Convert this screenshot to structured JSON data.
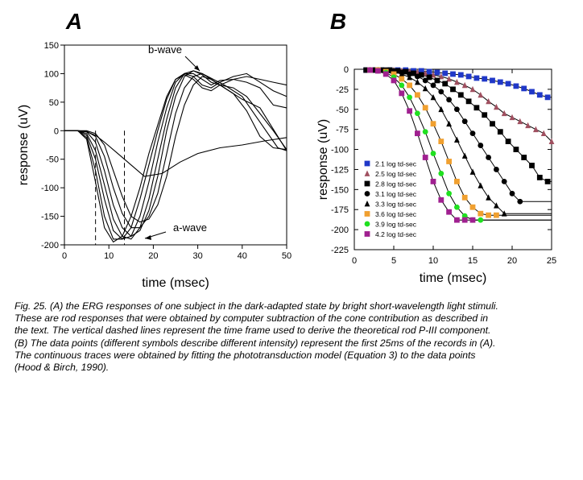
{
  "chart_data": [
    {
      "panel_label": "A",
      "type": "line",
      "xlabel": "time (msec)",
      "ylabel": "response (uV)",
      "xlim": [
        0,
        50
      ],
      "ylim": [
        -200,
        150
      ],
      "x_ticks": [
        0,
        10,
        20,
        30,
        40,
        50
      ],
      "y_ticks": [
        -200,
        -150,
        -100,
        -50,
        0,
        50,
        100,
        150
      ],
      "vlines_dashed": [
        7,
        13.5
      ],
      "annotations": [
        "b-wave",
        "a-wave"
      ],
      "series": [
        {
          "x": [
            0,
            3,
            5,
            7,
            9,
            12,
            15,
            18,
            22,
            26,
            30,
            35,
            40,
            45,
            50
          ],
          "y": [
            0,
            0,
            -2,
            -8,
            -20,
            -40,
            -60,
            -80,
            -75,
            -55,
            -40,
            -30,
            -25,
            -18,
            -12
          ]
        },
        {
          "x": [
            0,
            3,
            5,
            7,
            9,
            11,
            13,
            15,
            17,
            19,
            21,
            23,
            25,
            27,
            29,
            31,
            33,
            36,
            40,
            44,
            48,
            50
          ],
          "y": [
            0,
            0,
            0,
            -5,
            -25,
            -70,
            -115,
            -150,
            -160,
            -155,
            -130,
            -80,
            -10,
            45,
            80,
            95,
            90,
            75,
            55,
            40,
            -10,
            -35
          ]
        },
        {
          "x": [
            0,
            3,
            5,
            7,
            9,
            11,
            13,
            15,
            17,
            19,
            21,
            23,
            25,
            27,
            29,
            31,
            33,
            36,
            40,
            44,
            48,
            50
          ],
          "y": [
            0,
            0,
            -1,
            -10,
            -45,
            -100,
            -145,
            -170,
            -170,
            -150,
            -110,
            -40,
            30,
            75,
            95,
            100,
            92,
            80,
            60,
            15,
            -30,
            -35
          ]
        },
        {
          "x": [
            0,
            3,
            5,
            7,
            9,
            11,
            13,
            15,
            17,
            19,
            21,
            23,
            25,
            27,
            29,
            31,
            33,
            35,
            38,
            41,
            44,
            47,
            50
          ],
          "y": [
            0,
            0,
            -2,
            -20,
            -70,
            -130,
            -170,
            -185,
            -175,
            -140,
            -80,
            0,
            60,
            95,
            105,
            100,
            90,
            80,
            65,
            35,
            -10,
            -30,
            -33
          ]
        },
        {
          "x": [
            0,
            3,
            5,
            7,
            9,
            11,
            13,
            15,
            17,
            19,
            21,
            23,
            25,
            27,
            29,
            31,
            33,
            35,
            38,
            41,
            44,
            47,
            50
          ],
          "y": [
            0,
            0,
            -5,
            -35,
            -95,
            -155,
            -185,
            -190,
            -170,
            -120,
            -50,
            20,
            75,
            100,
            105,
            98,
            85,
            80,
            75,
            60,
            30,
            0,
            -33
          ]
        },
        {
          "x": [
            0,
            3,
            5,
            7,
            9,
            11,
            13,
            15,
            17,
            19,
            21,
            23,
            25,
            27,
            29,
            31,
            33,
            35,
            38,
            41,
            44,
            47,
            50
          ],
          "y": [
            0,
            0,
            -8,
            -50,
            -120,
            -175,
            -190,
            -185,
            -150,
            -90,
            -20,
            40,
            85,
            100,
            100,
            90,
            80,
            88,
            90,
            85,
            75,
            45,
            40
          ]
        },
        {
          "x": [
            0,
            3,
            5,
            7,
            9,
            11,
            13,
            15,
            17,
            19,
            21,
            23,
            25,
            27,
            29,
            31,
            33,
            35,
            38,
            41,
            44,
            47,
            50
          ],
          "y": [
            0,
            0,
            -12,
            -70,
            -150,
            -190,
            -190,
            -170,
            -120,
            -60,
            0,
            55,
            90,
            100,
            95,
            80,
            75,
            85,
            95,
            100,
            85,
            70,
            60
          ]
        },
        {
          "x": [
            0,
            3,
            5,
            7,
            9,
            11,
            13,
            15,
            17,
            19,
            21,
            23,
            25,
            27,
            29,
            31,
            33,
            35,
            38,
            41,
            44,
            47,
            50
          ],
          "y": [
            0,
            0,
            -15,
            -90,
            -170,
            -195,
            -185,
            -150,
            -100,
            -40,
            10,
            60,
            90,
            98,
            90,
            75,
            70,
            80,
            90,
            95,
            90,
            85,
            80
          ]
        }
      ]
    },
    {
      "panel_label": "B",
      "type": "scatter",
      "xlabel": "time (msec)",
      "ylabel": "response (uV)",
      "xlim": [
        0,
        25
      ],
      "ylim": [
        -225,
        0
      ],
      "x_ticks": [
        0,
        5,
        10,
        15,
        20,
        25
      ],
      "y_ticks": [
        -225,
        -200,
        -175,
        -150,
        -125,
        -100,
        -75,
        -50,
        -25,
        0
      ],
      "legend": "left",
      "series": [
        {
          "name": "2.1 log td-sec",
          "color": "#2038c8",
          "marker": "square",
          "x": [
            1.5,
            2.5,
            3.5,
            4.5,
            5.5,
            6.5,
            7.5,
            8.5,
            9.5,
            10.5,
            11.5,
            12.5,
            13.5,
            14.5,
            15.5,
            16.5,
            17.5,
            18.5,
            19.5,
            20.5,
            21.5,
            22.5,
            23.5,
            24.5
          ],
          "y": [
            -1,
            -1,
            -1,
            -1,
            -1,
            -1,
            -2,
            -2,
            -3,
            -4,
            -5,
            -6,
            -7,
            -9,
            -11,
            -12,
            -14,
            -16,
            -18,
            -21,
            -24,
            -28,
            -32,
            -35
          ]
        },
        {
          "name": "2.5 log td-sec",
          "color": "#a05060",
          "marker": "triangle",
          "x": [
            2,
            3,
            4,
            5,
            6,
            7,
            8,
            9,
            10,
            11,
            12,
            13,
            14,
            15,
            16,
            17,
            18,
            19,
            20,
            21,
            22,
            23,
            24,
            25
          ],
          "y": [
            -1,
            -1,
            -1,
            -1,
            -2,
            -3,
            -4,
            -5,
            -7,
            -9,
            -12,
            -16,
            -20,
            -25,
            -32,
            -40,
            -47,
            -55,
            -60,
            -65,
            -70,
            -75,
            -80,
            -90
          ]
        },
        {
          "name": "2.8 log td-sec",
          "color": "#000000",
          "marker": "square",
          "x": [
            1.5,
            2.5,
            3.5,
            4.5,
            5.5,
            6.5,
            7.5,
            8.5,
            9.5,
            10.5,
            11.5,
            12.5,
            13.5,
            14.5,
            15.5,
            16.5,
            17.5,
            18.5,
            19.5,
            20.5,
            21.5,
            22.5,
            23.5,
            24.5
          ],
          "y": [
            -1,
            -1,
            -1,
            -1,
            -2,
            -3,
            -5,
            -7,
            -10,
            -14,
            -18,
            -25,
            -32,
            -40,
            -48,
            -57,
            -68,
            -78,
            -90,
            -100,
            -110,
            -120,
            -135,
            -140
          ]
        },
        {
          "name": "3.1 log td-sec",
          "color": "#000000",
          "marker": "circle",
          "x": [
            2,
            3,
            4,
            5,
            6,
            7,
            8,
            9,
            10,
            11,
            12,
            13,
            14,
            15,
            16,
            17,
            18,
            19,
            20,
            21
          ],
          "y": [
            -1,
            -1,
            -1,
            -2,
            -4,
            -6,
            -9,
            -14,
            -20,
            -28,
            -38,
            -50,
            -65,
            -80,
            -95,
            -110,
            -125,
            -140,
            -155,
            -165
          ]
        },
        {
          "name": "3.3 log td-sec",
          "color": "#000000",
          "marker": "triangle",
          "x": [
            2,
            3,
            4,
            5,
            6,
            7,
            8,
            9,
            10,
            11,
            12,
            13,
            14,
            15,
            16,
            17,
            18,
            19
          ],
          "y": [
            -1,
            -1,
            -2,
            -3,
            -6,
            -10,
            -16,
            -24,
            -35,
            -50,
            -68,
            -88,
            -108,
            -128,
            -145,
            -160,
            -170,
            -180
          ]
        },
        {
          "name": "3.6 log td-sec",
          "color": "#f0a030",
          "marker": "square",
          "x": [
            2,
            3,
            4,
            5,
            6,
            7,
            8,
            9,
            10,
            11,
            12,
            13,
            14,
            15,
            16,
            17,
            18
          ],
          "y": [
            -1,
            -1,
            -3,
            -6,
            -12,
            -20,
            -32,
            -48,
            -68,
            -90,
            -115,
            -140,
            -160,
            -172,
            -180,
            -182,
            -182
          ]
        },
        {
          "name": "3.9 log td-sec",
          "color": "#20e020",
          "marker": "circle",
          "x": [
            2,
            3,
            4,
            5,
            6,
            7,
            8,
            9,
            10,
            11,
            12,
            13,
            14,
            15,
            16
          ],
          "y": [
            -1,
            -2,
            -4,
            -10,
            -20,
            -35,
            -55,
            -78,
            -105,
            -130,
            -155,
            -172,
            -183,
            -188,
            -188
          ]
        },
        {
          "name": "4.2 log td-sec",
          "color": "#a02090",
          "marker": "square",
          "x": [
            2,
            3,
            4,
            5,
            6,
            7,
            8,
            9,
            10,
            11,
            12,
            13,
            14,
            15
          ],
          "y": [
            -1,
            -2,
            -6,
            -14,
            -30,
            -52,
            -80,
            -110,
            -140,
            -163,
            -178,
            -188,
            -188,
            -188
          ]
        }
      ]
    }
  ],
  "caption": [
    "Fig. 25. (A) the ERG responses of one subject in the dark-adapted state by bright short-wavelength light stimuli.",
    "These are rod responses that were obtained by computer subtraction of the cone contribution as described in",
    "the text. The vertical dashed lines represent the time frame used to derive the theoretical rod P-III component.",
    "(B) The data points (different symbols describe different intensity) represent the first 25ms of the records in (A).",
    " The continuous traces were obtained by fitting the phototransduction model (Equation 3) to the data points",
    "(Hood & Birch, 1990)."
  ]
}
